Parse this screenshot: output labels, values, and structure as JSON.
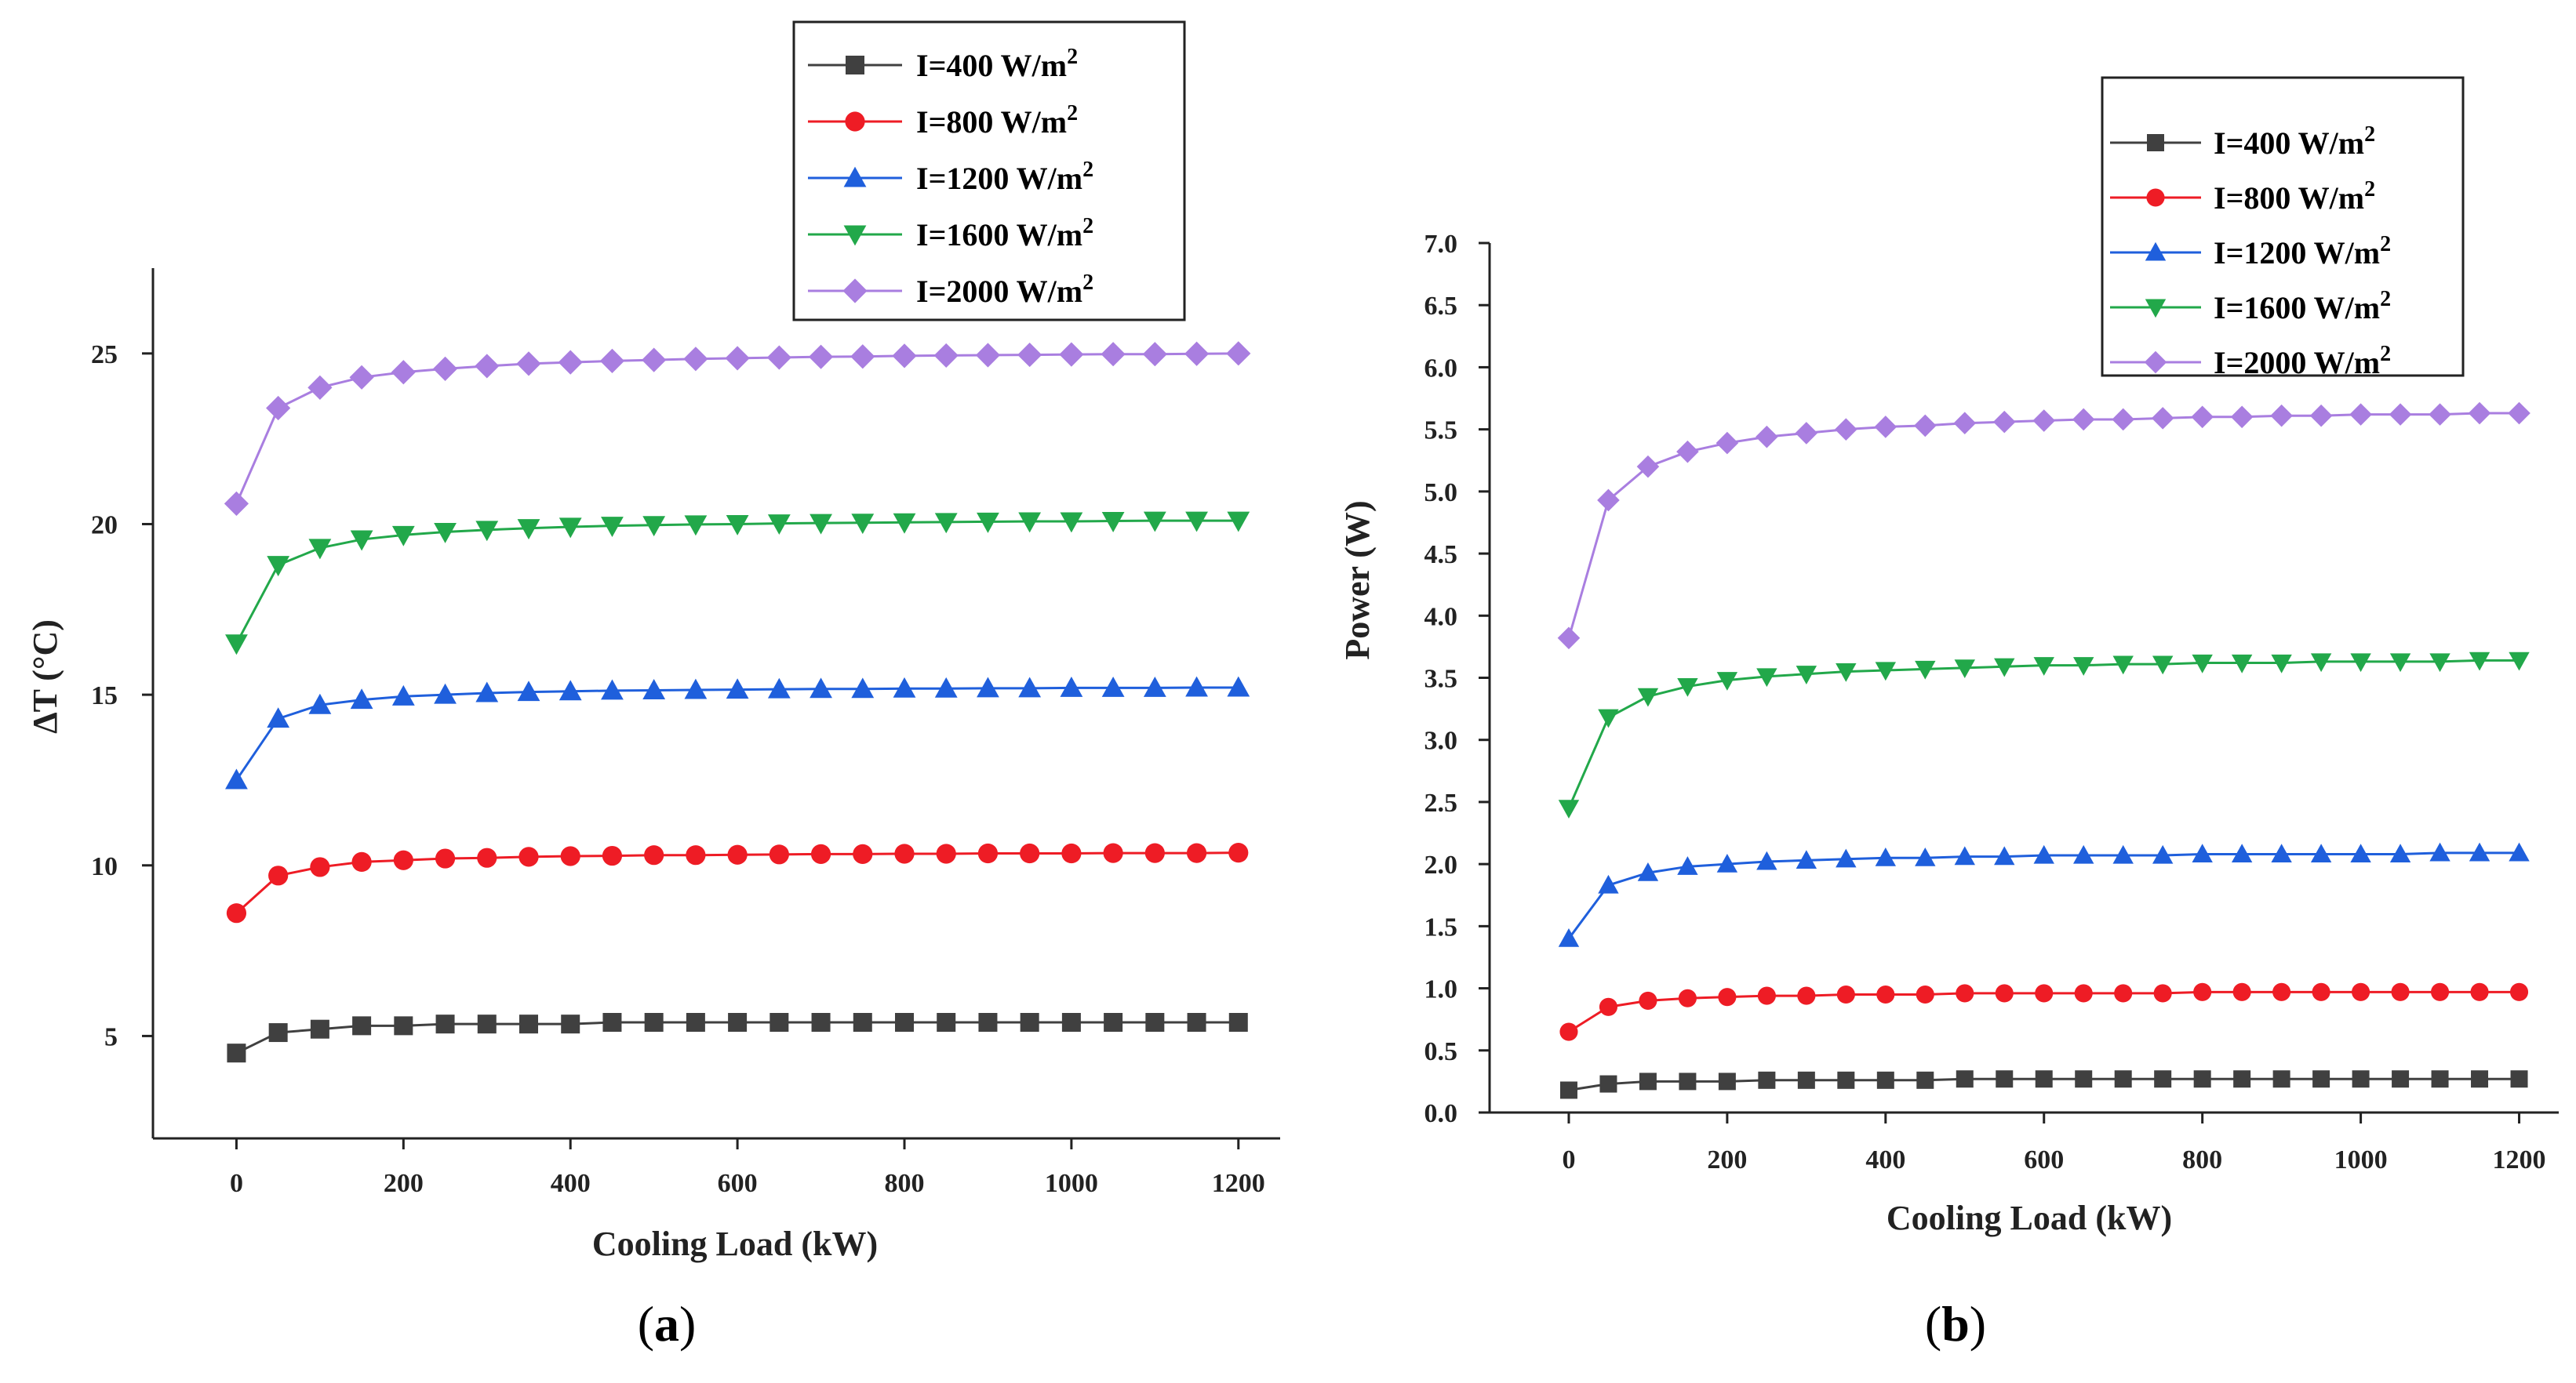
{
  "colors": [
    "#404040",
    "#ee1c25",
    "#1f5fdc",
    "#22a84a",
    "#a97ee0"
  ],
  "chart_data": [
    {
      "type": "line",
      "panel": "a",
      "panel_label": "a",
      "xlabel": "Cooling Load (kW)",
      "ylabel": "ΔT (°C)",
      "xlim": [
        -100,
        1250
      ],
      "ylim": [
        2,
        27.5
      ],
      "xticks": [
        0,
        200,
        400,
        600,
        800,
        1000,
        1200
      ],
      "yticks": [
        5,
        10,
        15,
        20,
        25
      ],
      "yticks_labels": [
        "5",
        "10",
        "15",
        "20",
        "25"
      ],
      "legend_position": "top-right",
      "x": [
        0,
        50,
        100,
        150,
        200,
        250,
        300,
        350,
        400,
        450,
        500,
        550,
        600,
        650,
        700,
        750,
        800,
        850,
        900,
        950,
        1000,
        1050,
        1100,
        1150,
        1200
      ],
      "series": [
        {
          "name": "I=400 W/m",
          "sup": "2",
          "marker": "square",
          "values": [
            4.5,
            5.1,
            5.2,
            5.3,
            5.3,
            5.35,
            5.35,
            5.35,
            5.35,
            5.4,
            5.4,
            5.4,
            5.4,
            5.4,
            5.4,
            5.4,
            5.4,
            5.4,
            5.4,
            5.4,
            5.4,
            5.4,
            5.4,
            5.4,
            5.4
          ]
        },
        {
          "name": "I=800 W/m",
          "sup": "2",
          "marker": "circle",
          "values": [
            8.6,
            9.7,
            9.95,
            10.1,
            10.15,
            10.2,
            10.22,
            10.25,
            10.27,
            10.28,
            10.3,
            10.3,
            10.31,
            10.32,
            10.33,
            10.33,
            10.34,
            10.34,
            10.35,
            10.35,
            10.35,
            10.36,
            10.36,
            10.36,
            10.37
          ]
        },
        {
          "name": "I=1200 W/m",
          "sup": "2",
          "marker": "triangle-up",
          "values": [
            12.5,
            14.3,
            14.7,
            14.85,
            14.95,
            15.0,
            15.05,
            15.08,
            15.1,
            15.12,
            15.13,
            15.14,
            15.15,
            15.16,
            15.17,
            15.17,
            15.18,
            15.18,
            15.19,
            15.19,
            15.2,
            15.2,
            15.2,
            15.21,
            15.21
          ]
        },
        {
          "name": "I=1600 W/m",
          "sup": "2",
          "marker": "triangle-down",
          "values": [
            16.5,
            18.8,
            19.3,
            19.55,
            19.68,
            19.77,
            19.83,
            19.88,
            19.92,
            19.95,
            19.97,
            19.99,
            20.0,
            20.02,
            20.03,
            20.04,
            20.05,
            20.06,
            20.07,
            20.08,
            20.08,
            20.09,
            20.1,
            20.1,
            20.1
          ]
        },
        {
          "name": "I=2000 W/m",
          "sup": "2",
          "marker": "diamond",
          "values": [
            20.6,
            23.4,
            24.0,
            24.3,
            24.45,
            24.55,
            24.63,
            24.7,
            24.74,
            24.78,
            24.81,
            24.84,
            24.86,
            24.88,
            24.9,
            24.91,
            24.93,
            24.94,
            24.95,
            24.96,
            24.97,
            24.98,
            24.98,
            24.99,
            25.0
          ]
        }
      ]
    },
    {
      "type": "line",
      "panel": "b",
      "panel_label": "b",
      "xlabel": "Cooling Load (kW)",
      "ylabel": "Power (W)",
      "xlim": [
        -100,
        1250
      ],
      "ylim": [
        0,
        7.0
      ],
      "xticks": [
        0,
        200,
        400,
        600,
        800,
        1000,
        1200
      ],
      "yticks": [
        0,
        0.5,
        1.0,
        1.5,
        2.0,
        2.5,
        3.0,
        3.5,
        4.0,
        4.5,
        5.0,
        5.5,
        6.0,
        6.5,
        7.0
      ],
      "yticks_labels": [
        "0.0",
        "0.5",
        "1.0",
        "1.5",
        "2.0",
        "2.5",
        "3.0",
        "3.5",
        "4.0",
        "4.5",
        "5.0",
        "5.5",
        "6.0",
        "6.5",
        "7.0"
      ],
      "legend_position": "top-right",
      "x": [
        0,
        50,
        100,
        150,
        200,
        250,
        300,
        350,
        400,
        450,
        500,
        550,
        600,
        650,
        700,
        750,
        800,
        850,
        900,
        950,
        1000,
        1050,
        1100,
        1150,
        1200
      ],
      "series": [
        {
          "name": "I=400 W/m",
          "sup": "2",
          "marker": "square",
          "values": [
            0.18,
            0.23,
            0.25,
            0.25,
            0.25,
            0.26,
            0.26,
            0.26,
            0.26,
            0.26,
            0.27,
            0.27,
            0.27,
            0.27,
            0.27,
            0.27,
            0.27,
            0.27,
            0.27,
            0.27,
            0.27,
            0.27,
            0.27,
            0.27,
            0.27
          ]
        },
        {
          "name": "I=800 W/m",
          "sup": "2",
          "marker": "circle",
          "values": [
            0.65,
            0.85,
            0.9,
            0.92,
            0.93,
            0.94,
            0.94,
            0.95,
            0.95,
            0.95,
            0.96,
            0.96,
            0.96,
            0.96,
            0.96,
            0.96,
            0.97,
            0.97,
            0.97,
            0.97,
            0.97,
            0.97,
            0.97,
            0.97,
            0.97
          ]
        },
        {
          "name": "I=1200 W/m",
          "sup": "2",
          "marker": "triangle-up",
          "values": [
            1.4,
            1.83,
            1.93,
            1.98,
            2.0,
            2.02,
            2.03,
            2.04,
            2.05,
            2.05,
            2.06,
            2.06,
            2.07,
            2.07,
            2.07,
            2.07,
            2.08,
            2.08,
            2.08,
            2.08,
            2.08,
            2.08,
            2.09,
            2.09,
            2.09
          ]
        },
        {
          "name": "I=1600 W/m",
          "sup": "2",
          "marker": "triangle-down",
          "values": [
            2.45,
            3.18,
            3.35,
            3.43,
            3.48,
            3.51,
            3.53,
            3.55,
            3.56,
            3.57,
            3.58,
            3.59,
            3.6,
            3.6,
            3.61,
            3.61,
            3.62,
            3.62,
            3.62,
            3.63,
            3.63,
            3.63,
            3.63,
            3.64,
            3.64
          ]
        },
        {
          "name": "I=2000 W/m",
          "sup": "2",
          "marker": "diamond",
          "values": [
            3.82,
            4.93,
            5.2,
            5.32,
            5.39,
            5.44,
            5.47,
            5.5,
            5.52,
            5.53,
            5.55,
            5.56,
            5.57,
            5.58,
            5.58,
            5.59,
            5.6,
            5.6,
            5.61,
            5.61,
            5.62,
            5.62,
            5.62,
            5.63,
            5.63
          ]
        }
      ]
    }
  ]
}
